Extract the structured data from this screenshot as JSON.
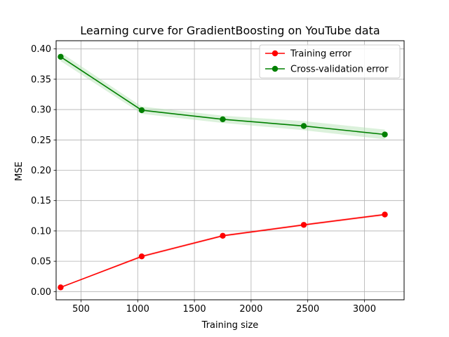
{
  "chart_data": {
    "type": "line",
    "title": "Learning curve for GradientBoosting on YouTube data",
    "xlabel": "Training size",
    "ylabel": "MSE",
    "xlim": [
      280,
      3350
    ],
    "ylim": [
      -0.0135,
      0.4135
    ],
    "xticks": [
      500,
      1000,
      1500,
      2000,
      2500,
      3000
    ],
    "xtick_labels": [
      "500",
      "1000",
      "1500",
      "2000",
      "2500",
      "3000"
    ],
    "yticks": [
      0.0,
      0.05,
      0.1,
      0.15,
      0.2,
      0.25,
      0.3,
      0.35,
      0.4
    ],
    "ytick_labels": [
      "0.00",
      "0.05",
      "0.10",
      "0.15",
      "0.20",
      "0.25",
      "0.30",
      "0.35",
      "0.40"
    ],
    "grid": true,
    "legend_position": "upper-right",
    "x": [
      320,
      1035,
      1750,
      2465,
      3180
    ],
    "series": [
      {
        "name": "Training error",
        "color": "#ff0000",
        "values": [
          0.007,
          0.058,
          0.092,
          0.11,
          0.127
        ],
        "band_lower": [
          0.006,
          0.056,
          0.09,
          0.108,
          0.125
        ],
        "band_upper": [
          0.008,
          0.06,
          0.094,
          0.112,
          0.129
        ]
      },
      {
        "name": "Cross-validation error",
        "color": "#008000",
        "band_color": "#b0e0b0",
        "values": [
          0.387,
          0.299,
          0.284,
          0.273,
          0.259
        ],
        "band_lower": [
          0.38,
          0.293,
          0.278,
          0.266,
          0.251
        ],
        "band_upper": [
          0.394,
          0.305,
          0.29,
          0.281,
          0.267
        ]
      }
    ]
  }
}
